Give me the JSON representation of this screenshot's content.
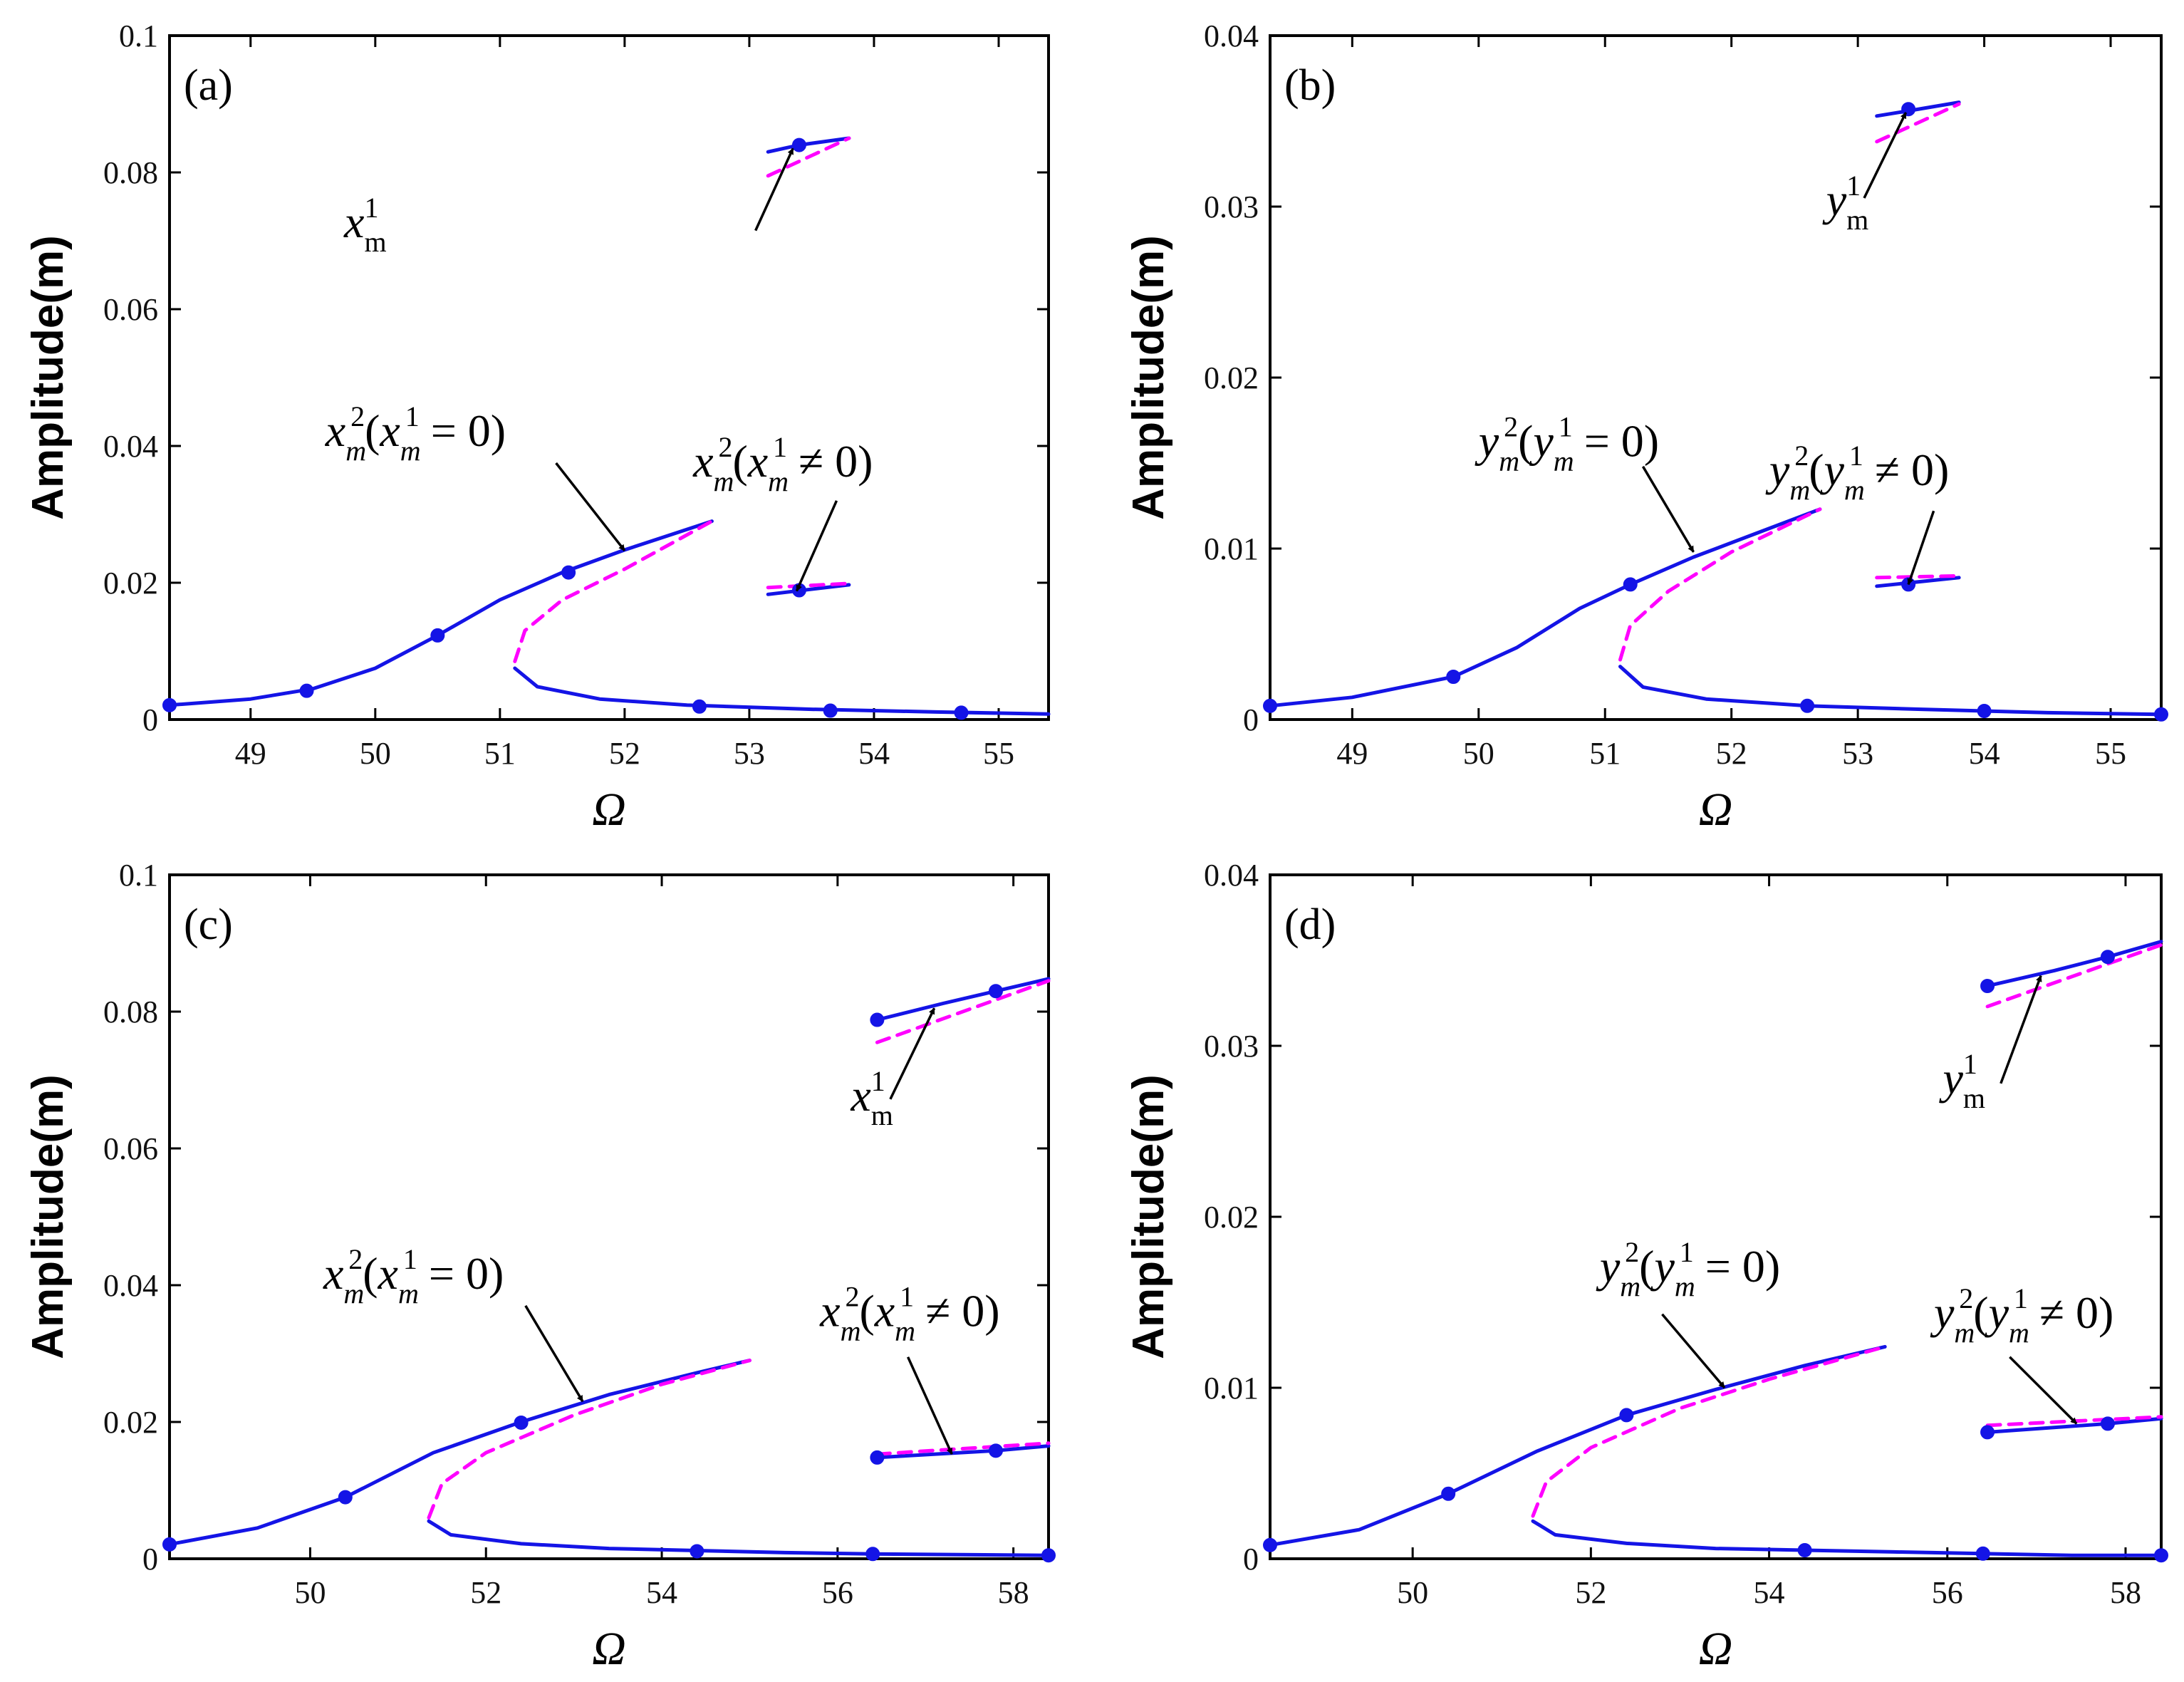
{
  "colors": {
    "stable": "#1414e6",
    "unstable": "#ff00ff",
    "axes": "#000000"
  },
  "y_axis_label": "Amplitude(m)",
  "x_axis_label": "Ω",
  "chart_data": [
    {
      "type": "line",
      "panel_label": "(a)",
      "xlabel": "Ω",
      "ylabel": "Amplitude(m)",
      "xlim": [
        48.35,
        55.4
      ],
      "ylim": [
        0,
        0.1
      ],
      "xticks": [
        "49",
        "50",
        "51",
        "52",
        "53",
        "54",
        "55"
      ],
      "xtick_values": [
        49,
        50,
        51,
        52,
        53,
        54,
        55
      ],
      "yticks": [
        "0",
        "0.02",
        "0.04",
        "0.06",
        "0.08",
        "0.1"
      ],
      "ytick_values": [
        0,
        0.02,
        0.04,
        0.06,
        0.08,
        0.1
      ],
      "series": [
        {
          "name": "x_m^2 stable upper branch",
          "style": "solid",
          "x": [
            48.35,
            49.0,
            49.5,
            50.0,
            50.5,
            51.0,
            51.5,
            52.0,
            52.7
          ],
          "y": [
            0.0021,
            0.003,
            0.0045,
            0.0075,
            0.0123,
            0.0175,
            0.0215,
            0.0248,
            0.029
          ]
        },
        {
          "name": "x_m^2 unstable branch",
          "style": "dashed",
          "x": [
            51.12,
            51.2,
            51.5,
            52.0,
            52.7
          ],
          "y": [
            0.0085,
            0.013,
            0.0175,
            0.022,
            0.029
          ]
        },
        {
          "name": "x_m^2 stable lower branch",
          "style": "solid",
          "x": [
            51.12,
            51.3,
            51.8,
            52.5,
            53.5,
            54.5,
            55.4
          ],
          "y": [
            0.0075,
            0.0048,
            0.003,
            0.0021,
            0.0015,
            0.0011,
            0.0008
          ]
        },
        {
          "name": "x_m^1 stable",
          "style": "solid",
          "x": [
            53.15,
            53.4,
            53.8
          ],
          "y": [
            0.083,
            0.084,
            0.085
          ]
        },
        {
          "name": "x_m^1 unstable",
          "style": "dashed",
          "x": [
            53.15,
            53.8
          ],
          "y": [
            0.0795,
            0.085
          ]
        },
        {
          "name": "x_m^2 (x_m^1≠0) stable",
          "style": "solid",
          "x": [
            53.15,
            53.8
          ],
          "y": [
            0.0183,
            0.0197
          ]
        },
        {
          "name": "x_m^2 (x_m^1≠0) unstable",
          "style": "dashed",
          "x": [
            53.15,
            53.8
          ],
          "y": [
            0.0193,
            0.0199
          ]
        }
      ],
      "markers": [
        {
          "x": 48.35,
          "y": 0.0021
        },
        {
          "x": 49.45,
          "y": 0.0042
        },
        {
          "x": 50.5,
          "y": 0.0123
        },
        {
          "x": 51.55,
          "y": 0.0215
        },
        {
          "x": 52.6,
          "y": 0.0019
        },
        {
          "x": 53.4,
          "y": 0.084
        },
        {
          "x": 53.4,
          "y": 0.0189
        },
        {
          "x": 53.65,
          "y": 0.0013
        },
        {
          "x": 54.7,
          "y": 0.001
        }
      ],
      "annotations": [
        {
          "base": "x",
          "sup": "1",
          "sub": "m",
          "text_after": "",
          "text_x": 49.75,
          "text_y": 0.0705,
          "arrow_from": [
            53.05,
            0.0715
          ],
          "arrow_to": [
            53.35,
            0.0835
          ]
        },
        {
          "base": "x",
          "sup": "2",
          "sub": "m",
          "text_after": "(x",
          "sup2": "1",
          "sub2": "m",
          "text_end": " = 0)",
          "text_x": 49.6,
          "text_y": 0.04,
          "arrow_from": [
            51.45,
            0.0375
          ],
          "arrow_to": [
            52.0,
            0.0247
          ]
        },
        {
          "base": "x",
          "sup": "2",
          "sub": "m",
          "text_after": "(x",
          "sup2": "1",
          "sub2": "m",
          "text_end": " ≠ 0)",
          "text_x": 52.55,
          "text_y": 0.0355,
          "arrow_from": [
            53.7,
            0.032
          ],
          "arrow_to": [
            53.38,
            0.0188
          ]
        }
      ]
    },
    {
      "type": "line",
      "panel_label": "(b)",
      "xlabel": "Ω",
      "ylabel": "Amplitude(m)",
      "xlim": [
        48.35,
        55.4
      ],
      "ylim": [
        0,
        0.04
      ],
      "xticks": [
        "49",
        "50",
        "51",
        "52",
        "53",
        "54",
        "55"
      ],
      "xtick_values": [
        49,
        50,
        51,
        52,
        53,
        54,
        55
      ],
      "yticks": [
        "0",
        "0.01",
        "0.02",
        "0.03",
        "0.04"
      ],
      "ytick_values": [
        0,
        0.01,
        0.02,
        0.03,
        0.04
      ],
      "series": [
        {
          "name": "y_m^2 stable upper branch",
          "style": "solid",
          "x": [
            48.35,
            49.0,
            49.8,
            50.3,
            50.8,
            51.2,
            51.7,
            52.2,
            52.7
          ],
          "y": [
            0.0008,
            0.0013,
            0.0025,
            0.0042,
            0.0065,
            0.0079,
            0.0095,
            0.0109,
            0.0123
          ]
        },
        {
          "name": "y_m^2 unstable branch",
          "style": "dashed",
          "x": [
            51.12,
            51.2,
            51.5,
            52.0,
            52.7
          ],
          "y": [
            0.0035,
            0.0055,
            0.0075,
            0.0098,
            0.0123
          ]
        },
        {
          "name": "y_m^2 stable lower branch",
          "style": "solid",
          "x": [
            51.12,
            51.3,
            51.8,
            52.6,
            53.5,
            54.5,
            55.4
          ],
          "y": [
            0.0031,
            0.0019,
            0.0012,
            0.0008,
            0.0006,
            0.0004,
            0.0003
          ]
        },
        {
          "name": "y_m^1 stable",
          "style": "solid",
          "x": [
            53.15,
            53.4,
            53.8
          ],
          "y": [
            0.0353,
            0.0356,
            0.0361
          ]
        },
        {
          "name": "y_m^1 unstable",
          "style": "dashed",
          "x": [
            53.15,
            53.8
          ],
          "y": [
            0.0338,
            0.036
          ]
        },
        {
          "name": "y_m^2 (y_m^1≠0) stable",
          "style": "solid",
          "x": [
            53.15,
            53.8
          ],
          "y": [
            0.0078,
            0.0083
          ]
        },
        {
          "name": "y_m^2 (y_m^1≠0) unstable",
          "style": "dashed",
          "x": [
            53.15,
            53.8
          ],
          "y": [
            0.0083,
            0.0084
          ]
        }
      ],
      "markers": [
        {
          "x": 48.35,
          "y": 0.0008
        },
        {
          "x": 49.8,
          "y": 0.0025
        },
        {
          "x": 51.2,
          "y": 0.0079
        },
        {
          "x": 52.6,
          "y": 0.0008
        },
        {
          "x": 53.4,
          "y": 0.0357
        },
        {
          "x": 53.4,
          "y": 0.0079
        },
        {
          "x": 54.0,
          "y": 0.0005
        },
        {
          "x": 55.4,
          "y": 0.0003
        }
      ],
      "annotations": [
        {
          "base": "y",
          "sup": "1",
          "sub": "m",
          "text_after": "",
          "text_x": 52.75,
          "text_y": 0.0295,
          "arrow_from": [
            53.05,
            0.0305
          ],
          "arrow_to": [
            53.38,
            0.0355
          ]
        },
        {
          "base": "y",
          "sup": "2",
          "sub": "m",
          "text_after": "(y",
          "sup2": "1",
          "sub2": "m",
          "text_end": " = 0)",
          "text_x": 50.0,
          "text_y": 0.0154,
          "arrow_from": [
            51.3,
            0.0148
          ],
          "arrow_to": [
            51.7,
            0.0098
          ]
        },
        {
          "base": "y",
          "sup": "2",
          "sub": "m",
          "text_after": "(y",
          "sup2": "1",
          "sub2": "m",
          "text_end": " ≠ 0)",
          "text_x": 52.3,
          "text_y": 0.0137,
          "arrow_from": [
            53.6,
            0.0122
          ],
          "arrow_to": [
            53.4,
            0.0079
          ]
        }
      ]
    },
    {
      "type": "line",
      "panel_label": "(c)",
      "xlabel": "Ω",
      "ylabel": "Amplitude(m)",
      "xlim": [
        48.4,
        58.4
      ],
      "ylim": [
        0,
        0.1
      ],
      "xticks": [
        "50",
        "52",
        "54",
        "56",
        "58"
      ],
      "xtick_values": [
        50,
        52,
        54,
        56,
        58
      ],
      "yticks": [
        "0",
        "0.02",
        "0.04",
        "0.06",
        "0.08",
        "0.1"
      ],
      "ytick_values": [
        0,
        0.02,
        0.04,
        0.06,
        0.08,
        0.1
      ],
      "series": [
        {
          "name": "x_m^2 stable upper branch",
          "style": "solid",
          "x": [
            48.4,
            49.4,
            50.4,
            51.4,
            52.4,
            53.4,
            54.4,
            55.0
          ],
          "y": [
            0.0021,
            0.0045,
            0.009,
            0.0155,
            0.02,
            0.024,
            0.0272,
            0.029
          ]
        },
        {
          "name": "x_m^2 unstable branch",
          "style": "dashed",
          "x": [
            51.35,
            51.5,
            52.0,
            53.0,
            54.0,
            55.0
          ],
          "y": [
            0.006,
            0.011,
            0.0155,
            0.021,
            0.0255,
            0.029
          ]
        },
        {
          "name": "x_m^2 stable lower branch",
          "style": "solid",
          "x": [
            51.35,
            51.6,
            52.4,
            53.4,
            54.4,
            55.4,
            56.4,
            57.4,
            58.4
          ],
          "y": [
            0.0055,
            0.0035,
            0.0022,
            0.0015,
            0.0012,
            0.0009,
            0.0007,
            0.0006,
            0.0005
          ]
        },
        {
          "name": "x_m^1 stable",
          "style": "solid",
          "x": [
            56.45,
            57.2,
            57.8,
            58.4
          ],
          "y": [
            0.0788,
            0.0812,
            0.083,
            0.0848
          ]
        },
        {
          "name": "x_m^1 unstable",
          "style": "dashed",
          "x": [
            56.45,
            58.4
          ],
          "y": [
            0.0755,
            0.0845
          ]
        },
        {
          "name": "x_m^2 (x_m^1≠0) stable",
          "style": "solid",
          "x": [
            56.45,
            57.8,
            58.4
          ],
          "y": [
            0.0148,
            0.0158,
            0.0165
          ]
        },
        {
          "name": "x_m^2 (x_m^1≠0) unstable",
          "style": "dashed",
          "x": [
            56.45,
            58.4
          ],
          "y": [
            0.0153,
            0.0169
          ]
        }
      ],
      "markers": [
        {
          "x": 48.4,
          "y": 0.0021
        },
        {
          "x": 50.4,
          "y": 0.009
        },
        {
          "x": 52.4,
          "y": 0.0199
        },
        {
          "x": 54.4,
          "y": 0.0011
        },
        {
          "x": 56.4,
          "y": 0.0007
        },
        {
          "x": 56.45,
          "y": 0.0788
        },
        {
          "x": 57.8,
          "y": 0.083
        },
        {
          "x": 56.45,
          "y": 0.0148
        },
        {
          "x": 57.8,
          "y": 0.0158
        },
        {
          "x": 58.4,
          "y": 0.0005
        }
      ],
      "annotations": [
        {
          "base": "x",
          "sup": "1",
          "sub": "m",
          "text_after": "",
          "text_x": 56.15,
          "text_y": 0.0655,
          "arrow_from": [
            56.6,
            0.0672
          ],
          "arrow_to": [
            57.1,
            0.0805
          ]
        },
        {
          "base": "x",
          "sup": "2",
          "sub": "m",
          "text_after": "(x",
          "sup2": "1",
          "sub2": "m",
          "text_end": " = 0)",
          "text_x": 50.15,
          "text_y": 0.0395,
          "arrow_from": [
            52.45,
            0.037
          ],
          "arrow_to": [
            53.1,
            0.023
          ]
        },
        {
          "base": "x",
          "sup": "2",
          "sub": "m",
          "text_after": "(x",
          "sup2": "1",
          "sub2": "m",
          "text_end": " ≠ 0)",
          "text_x": 55.8,
          "text_y": 0.034,
          "arrow_from": [
            56.8,
            0.0295
          ],
          "arrow_to": [
            57.3,
            0.0153
          ]
        }
      ]
    },
    {
      "type": "line",
      "panel_label": "(d)",
      "xlabel": "Ω",
      "ylabel": "Amplitude(m)",
      "xlim": [
        48.4,
        58.4
      ],
      "ylim": [
        0,
        0.04
      ],
      "xticks": [
        "50",
        "52",
        "54",
        "56",
        "58"
      ],
      "xtick_values": [
        50,
        52,
        54,
        56,
        58
      ],
      "yticks": [
        "0",
        "0.01",
        "0.02",
        "0.03",
        "0.04"
      ],
      "ytick_values": [
        0,
        0.01,
        0.02,
        0.03,
        0.04
      ],
      "series": [
        {
          "name": "y_m^2 stable upper branch",
          "style": "solid",
          "x": [
            48.4,
            49.4,
            50.4,
            51.4,
            52.4,
            53.4,
            54.4,
            55.3
          ],
          "y": [
            0.0008,
            0.0017,
            0.0038,
            0.0063,
            0.0084,
            0.0099,
            0.0113,
            0.0124
          ]
        },
        {
          "name": "y_m^2 unstable branch",
          "style": "dashed",
          "x": [
            51.35,
            51.5,
            52.0,
            53.0,
            54.0,
            55.3
          ],
          "y": [
            0.0025,
            0.0045,
            0.0065,
            0.0088,
            0.0105,
            0.0124
          ]
        },
        {
          "name": "y_m^2 stable lower branch",
          "style": "solid",
          "x": [
            51.35,
            51.6,
            52.4,
            53.4,
            54.4,
            55.4,
            56.4,
            57.4,
            58.4
          ],
          "y": [
            0.0022,
            0.0014,
            0.0009,
            0.0006,
            0.0005,
            0.0004,
            0.0003,
            0.0002,
            0.0002
          ]
        },
        {
          "name": "y_m^1 stable",
          "style": "solid",
          "x": [
            56.45,
            57.2,
            57.8,
            58.4
          ],
          "y": [
            0.0335,
            0.0344,
            0.0352,
            0.0361
          ]
        },
        {
          "name": "y_m^1 unstable",
          "style": "dashed",
          "x": [
            56.45,
            58.4
          ],
          "y": [
            0.0323,
            0.0359
          ]
        },
        {
          "name": "y_m^2 (y_m^1≠0) stable",
          "style": "solid",
          "x": [
            56.45,
            57.8,
            58.4
          ],
          "y": [
            0.0074,
            0.0079,
            0.0082
          ]
        },
        {
          "name": "y_m^2 (y_m^1≠0) unstable",
          "style": "dashed",
          "x": [
            56.45,
            58.4
          ],
          "y": [
            0.0078,
            0.0083
          ]
        }
      ],
      "markers": [
        {
          "x": 48.4,
          "y": 0.0008
        },
        {
          "x": 50.4,
          "y": 0.0038
        },
        {
          "x": 52.4,
          "y": 0.0084
        },
        {
          "x": 54.4,
          "y": 0.0005
        },
        {
          "x": 56.4,
          "y": 0.0003
        },
        {
          "x": 56.45,
          "y": 0.0335
        },
        {
          "x": 57.8,
          "y": 0.0352
        },
        {
          "x": 56.45,
          "y": 0.0074
        },
        {
          "x": 57.8,
          "y": 0.0079
        },
        {
          "x": 58.4,
          "y": 0.0002
        }
      ],
      "annotations": [
        {
          "base": "y",
          "sup": "1",
          "sub": "m",
          "text_after": "",
          "text_x": 55.95,
          "text_y": 0.0272,
          "arrow_from": [
            56.6,
            0.0278
          ],
          "arrow_to": [
            57.05,
            0.0341
          ]
        },
        {
          "base": "y",
          "sup": "2",
          "sub": "m",
          "text_after": "(y",
          "sup2": "1",
          "sub2": "m",
          "text_end": " = 0)",
          "text_x": 52.1,
          "text_y": 0.0162,
          "arrow_from": [
            52.8,
            0.0143
          ],
          "arrow_to": [
            53.5,
            0.01
          ]
        },
        {
          "base": "y",
          "sup": "2",
          "sub": "m",
          "text_after": "(y",
          "sup2": "1",
          "sub2": "m",
          "text_end": " ≠ 0)",
          "text_x": 55.85,
          "text_y": 0.0135,
          "arrow_from": [
            56.7,
            0.0118
          ],
          "arrow_to": [
            57.45,
            0.0079
          ]
        }
      ]
    }
  ]
}
